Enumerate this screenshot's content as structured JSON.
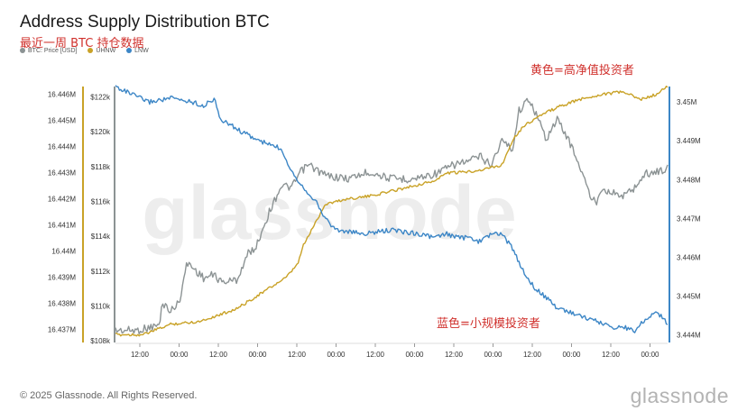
{
  "title": "Address Supply Distribution BTC",
  "subtitle": "最近一周 BTC 持仓数据",
  "legend": [
    {
      "label": "BTC: Price [USD]",
      "color": "#8c9394"
    },
    {
      "label": "UHNW",
      "color": "#c9a227"
    },
    {
      "label": "LNW",
      "color": "#3c86c6"
    }
  ],
  "annotations": {
    "yellow": "黄色=高净值投资者",
    "blue": "蓝色=小规模投资者"
  },
  "watermark": "glassnode",
  "footer": "© 2025 Glassnode. All Rights Reserved.",
  "logo_text": "glassnode",
  "chart_data": {
    "type": "line",
    "x_tick_labels": [
      "12:00",
      "00:00",
      "12:00",
      "00:00",
      "12:00",
      "00:00",
      "12:00",
      "00:00",
      "12:00",
      "00:00",
      "12:00",
      "00:00",
      "12:00",
      "00:00"
    ],
    "axes": {
      "uhnw": {
        "ticks": [
          "16.437M",
          "16.438M",
          "16.439M",
          "16.44M",
          "16.441M",
          "16.442M",
          "16.443M",
          "16.444M",
          "16.445M",
          "16.446M"
        ],
        "range": [
          16.4365,
          16.4463
        ]
      },
      "price": {
        "ticks": [
          "$108k",
          "$110k",
          "$112k",
          "$114k",
          "$116k",
          "$118k",
          "$120k",
          "$122k"
        ],
        "range": [
          107900,
          122600
        ],
        "unit": "USD"
      },
      "lnw": {
        "ticks": [
          "3.444M",
          "3.445M",
          "3.446M",
          "3.447M",
          "3.448M",
          "3.449M",
          "3.45M"
        ],
        "range": [
          3.4438,
          3.4504
        ]
      }
    },
    "series": [
      {
        "name": "BTC: Price [USD]",
        "axis": "price",
        "color": "#8c9394",
        "t": [
          0,
          0.04,
          0.08,
          0.085,
          0.1,
          0.115,
          0.13,
          0.16,
          0.18,
          0.19,
          0.2,
          0.22,
          0.24,
          0.255,
          0.265,
          0.28,
          0.3,
          0.32,
          0.335,
          0.35,
          0.38,
          0.42,
          0.46,
          0.5,
          0.54,
          0.58,
          0.62,
          0.64,
          0.66,
          0.68,
          0.7,
          0.72,
          0.73,
          0.75,
          0.78,
          0.8,
          0.82,
          0.84,
          0.86,
          0.87,
          0.88,
          0.9,
          0.92,
          0.94,
          0.96,
          0.98,
          1.0
        ],
        "values": [
          108600,
          108600,
          108900,
          110200,
          109700,
          110200,
          112500,
          111600,
          111800,
          111400,
          111400,
          111500,
          113000,
          113400,
          114300,
          115500,
          116900,
          116800,
          117700,
          118100,
          117500,
          117300,
          117700,
          117300,
          117300,
          117600,
          118200,
          118300,
          118600,
          118100,
          119500,
          119000,
          121200,
          121900,
          119600,
          120700,
          119600,
          118100,
          116300,
          115900,
          116800,
          116500,
          116300,
          116800,
          117600,
          117700,
          117900
        ]
      },
      {
        "name": "UHNW",
        "axis": "uhnw",
        "color": "#c9a227",
        "t": [
          0,
          0.05,
          0.1,
          0.15,
          0.18,
          0.22,
          0.25,
          0.28,
          0.31,
          0.33,
          0.34,
          0.36,
          0.38,
          0.42,
          0.46,
          0.5,
          0.54,
          0.58,
          0.6,
          0.62,
          0.66,
          0.7,
          0.72,
          0.74,
          0.77,
          0.8,
          0.84,
          0.88,
          0.92,
          0.95,
          0.98,
          1.0
        ],
        "values": [
          16.4368,
          16.4368,
          16.4372,
          16.4373,
          16.4375,
          16.4378,
          16.4382,
          16.4386,
          16.439,
          16.4395,
          16.4402,
          16.441,
          16.4418,
          16.442,
          16.4421,
          16.4423,
          16.4425,
          16.4427,
          16.443,
          16.443,
          16.4431,
          16.4433,
          16.4443,
          16.4448,
          16.4452,
          16.4455,
          16.4458,
          16.446,
          16.4461,
          16.4458,
          16.446,
          16.4463
        ]
      },
      {
        "name": "LNW",
        "axis": "lnw",
        "color": "#3c86c6",
        "t": [
          0,
          0.03,
          0.06,
          0.1,
          0.14,
          0.16,
          0.18,
          0.19,
          0.2,
          0.22,
          0.26,
          0.28,
          0.3,
          0.31,
          0.32,
          0.34,
          0.36,
          0.38,
          0.4,
          0.45,
          0.5,
          0.55,
          0.58,
          0.6,
          0.62,
          0.64,
          0.66,
          0.68,
          0.7,
          0.72,
          0.74,
          0.76,
          0.8,
          0.84,
          0.88,
          0.9,
          0.92,
          0.94,
          0.96,
          0.98,
          1.0
        ],
        "values": [
          3.4504,
          3.4502,
          3.45,
          3.4501,
          3.45,
          3.4499,
          3.4501,
          3.4495,
          3.4495,
          3.4493,
          3.449,
          3.4489,
          3.4488,
          3.4485,
          3.4482,
          3.4478,
          3.4475,
          3.447,
          3.4467,
          3.4466,
          3.4467,
          3.4466,
          3.4465,
          3.4466,
          3.4465,
          3.4465,
          3.4464,
          3.4466,
          3.4466,
          3.4462,
          3.4456,
          3.4452,
          3.4447,
          3.4445,
          3.4443,
          3.4442,
          3.4442,
          3.4441,
          3.4444,
          3.4446,
          3.4443
        ]
      }
    ]
  }
}
